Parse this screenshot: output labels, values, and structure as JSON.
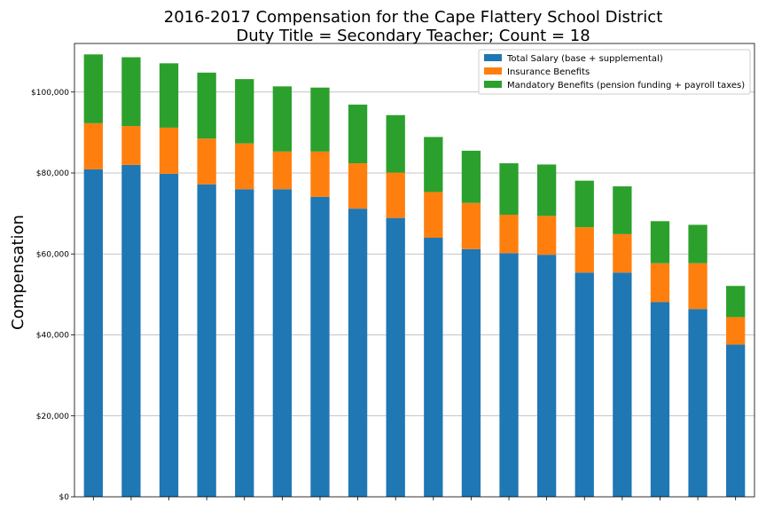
{
  "chart_data": {
    "type": "bar",
    "stacked": true,
    "title_lines": [
      "2016-2017 Compensation for the Cape Flattery School District",
      "Duty Title = Secondary Teacher; Count = 18"
    ],
    "xlabel": "",
    "ylabel": "Compensation",
    "ylim": [
      0,
      112000
    ],
    "yticks": [
      0,
      20000,
      40000,
      60000,
      80000,
      100000
    ],
    "ytick_labels": [
      "$0",
      "$20,000",
      "$40,000",
      "$60,000",
      "$80,000",
      "$100,000"
    ],
    "grid": "horizontal",
    "legend_position": "top-right",
    "series": [
      {
        "name": "Total Salary (base + supplemental)",
        "color": "#1f77b4",
        "values": [
          80900,
          82000,
          79800,
          77200,
          76000,
          76000,
          74100,
          71200,
          68900,
          64000,
          61200,
          60200,
          59800,
          55400,
          55400,
          48100,
          46400,
          37600
        ]
      },
      {
        "name": "Insurance Benefits",
        "color": "#ff7f0e",
        "values": [
          11400,
          9600,
          11400,
          11300,
          11300,
          9300,
          11200,
          11200,
          11200,
          11300,
          11400,
          9500,
          9600,
          11200,
          9500,
          9600,
          11300,
          6800
        ]
      },
      {
        "name": "Mandatory Benefits (pension funding + payroll taxes)",
        "color": "#2ca02c",
        "values": [
          17000,
          17000,
          15900,
          16300,
          15900,
          16100,
          15800,
          14500,
          14200,
          13600,
          12900,
          12700,
          12700,
          11500,
          11800,
          10400,
          9500,
          7700
        ]
      }
    ]
  }
}
